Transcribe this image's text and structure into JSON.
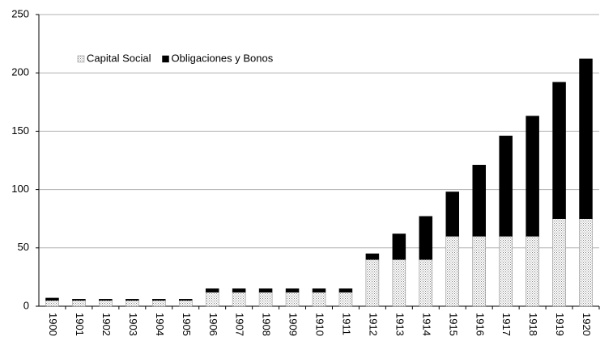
{
  "chart_data": {
    "type": "stacked-bar",
    "categories": [
      "1900",
      "1901",
      "1902",
      "1903",
      "1904",
      "1905",
      "1906",
      "1907",
      "1908",
      "1909",
      "1910",
      "1911",
      "1912",
      "1913",
      "1914",
      "1915",
      "1916",
      "1917",
      "1918",
      "1919",
      "1920"
    ],
    "series": [
      {
        "name": "Capital Social",
        "color": "#808080",
        "pattern": "dots",
        "values": [
          5,
          5,
          5,
          5,
          5,
          5,
          12,
          12,
          12,
          12,
          12,
          12,
          40,
          40,
          40,
          60,
          60,
          60,
          60,
          75,
          75
        ]
      },
      {
        "name": "Obligaciones y Bonos",
        "color": "#000000",
        "values": [
          2,
          1,
          1,
          1,
          1,
          1,
          3,
          3,
          3,
          3,
          3,
          3,
          5,
          22,
          37,
          38,
          61,
          86,
          103,
          117,
          137
        ]
      }
    ],
    "ylim": [
      0,
      250
    ],
    "yticks": [
      0,
      50,
      100,
      150,
      200,
      250
    ],
    "grid": true,
    "legend": "upper left"
  }
}
